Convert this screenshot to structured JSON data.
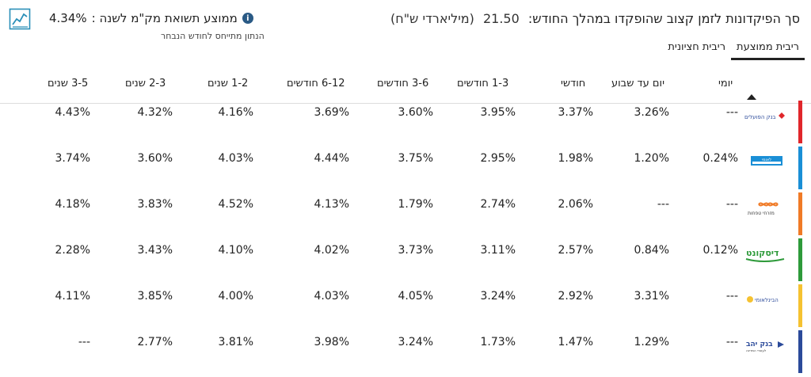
{
  "header": {
    "title": "סך הפיקדונות לזמן קצוב שהופקדו במהלך החודש:",
    "amount": "21.50",
    "unit": "(מיליארדי ש\"ח)",
    "average_label": "ממוצע תשואת מק\"מ לשנה :",
    "average_value": "4.34%",
    "average_note": "הנתון מתייחס לחודש הנבחר"
  },
  "tabs": [
    {
      "label": "ריבית ממוצעת",
      "active": true
    },
    {
      "label": "ריבית חציונית",
      "active": false
    }
  ],
  "table": {
    "columns": [
      "יומי",
      "יום עד שבוע",
      "חודשי",
      "1-3 חודשים",
      "3-6 חודשים",
      "6-12 חודשים",
      "1-2 שנים",
      "2-3 שנים",
      "3-5 שנים"
    ],
    "rows": [
      {
        "bank": "בנק הפועלים",
        "color": "#e0262b",
        "values": [
          "---",
          "3.26%",
          "3.37%",
          "3.95%",
          "3.60%",
          "3.69%",
          "4.16%",
          "4.32%",
          "4.43%"
        ]
      },
      {
        "bank": "לאומי",
        "color": "#1a8fd6",
        "values": [
          "0.24%",
          "1.20%",
          "1.98%",
          "2.95%",
          "3.75%",
          "4.44%",
          "4.03%",
          "3.60%",
          "3.74%"
        ]
      },
      {
        "bank": "מזרחי טפחות",
        "color": "#f07a26",
        "values": [
          "---",
          "---",
          "2.06%",
          "2.74%",
          "1.79%",
          "4.13%",
          "4.52%",
          "3.83%",
          "4.18%"
        ]
      },
      {
        "bank": "דיסקונט",
        "color": "#2e9a3a",
        "values": [
          "0.12%",
          "0.84%",
          "2.57%",
          "3.11%",
          "3.73%",
          "4.02%",
          "4.10%",
          "3.43%",
          "2.28%"
        ]
      },
      {
        "bank": "הבינלאומי",
        "color": "#f5c231",
        "values": [
          "---",
          "3.31%",
          "2.92%",
          "3.24%",
          "4.05%",
          "4.03%",
          "4.00%",
          "3.85%",
          "4.11%"
        ]
      },
      {
        "bank": "בנק יהב",
        "color": "#2b4a9a",
        "values": [
          "---",
          "1.29%",
          "1.47%",
          "1.73%",
          "3.24%",
          "3.98%",
          "3.81%",
          "2.77%",
          "---"
        ]
      }
    ]
  }
}
